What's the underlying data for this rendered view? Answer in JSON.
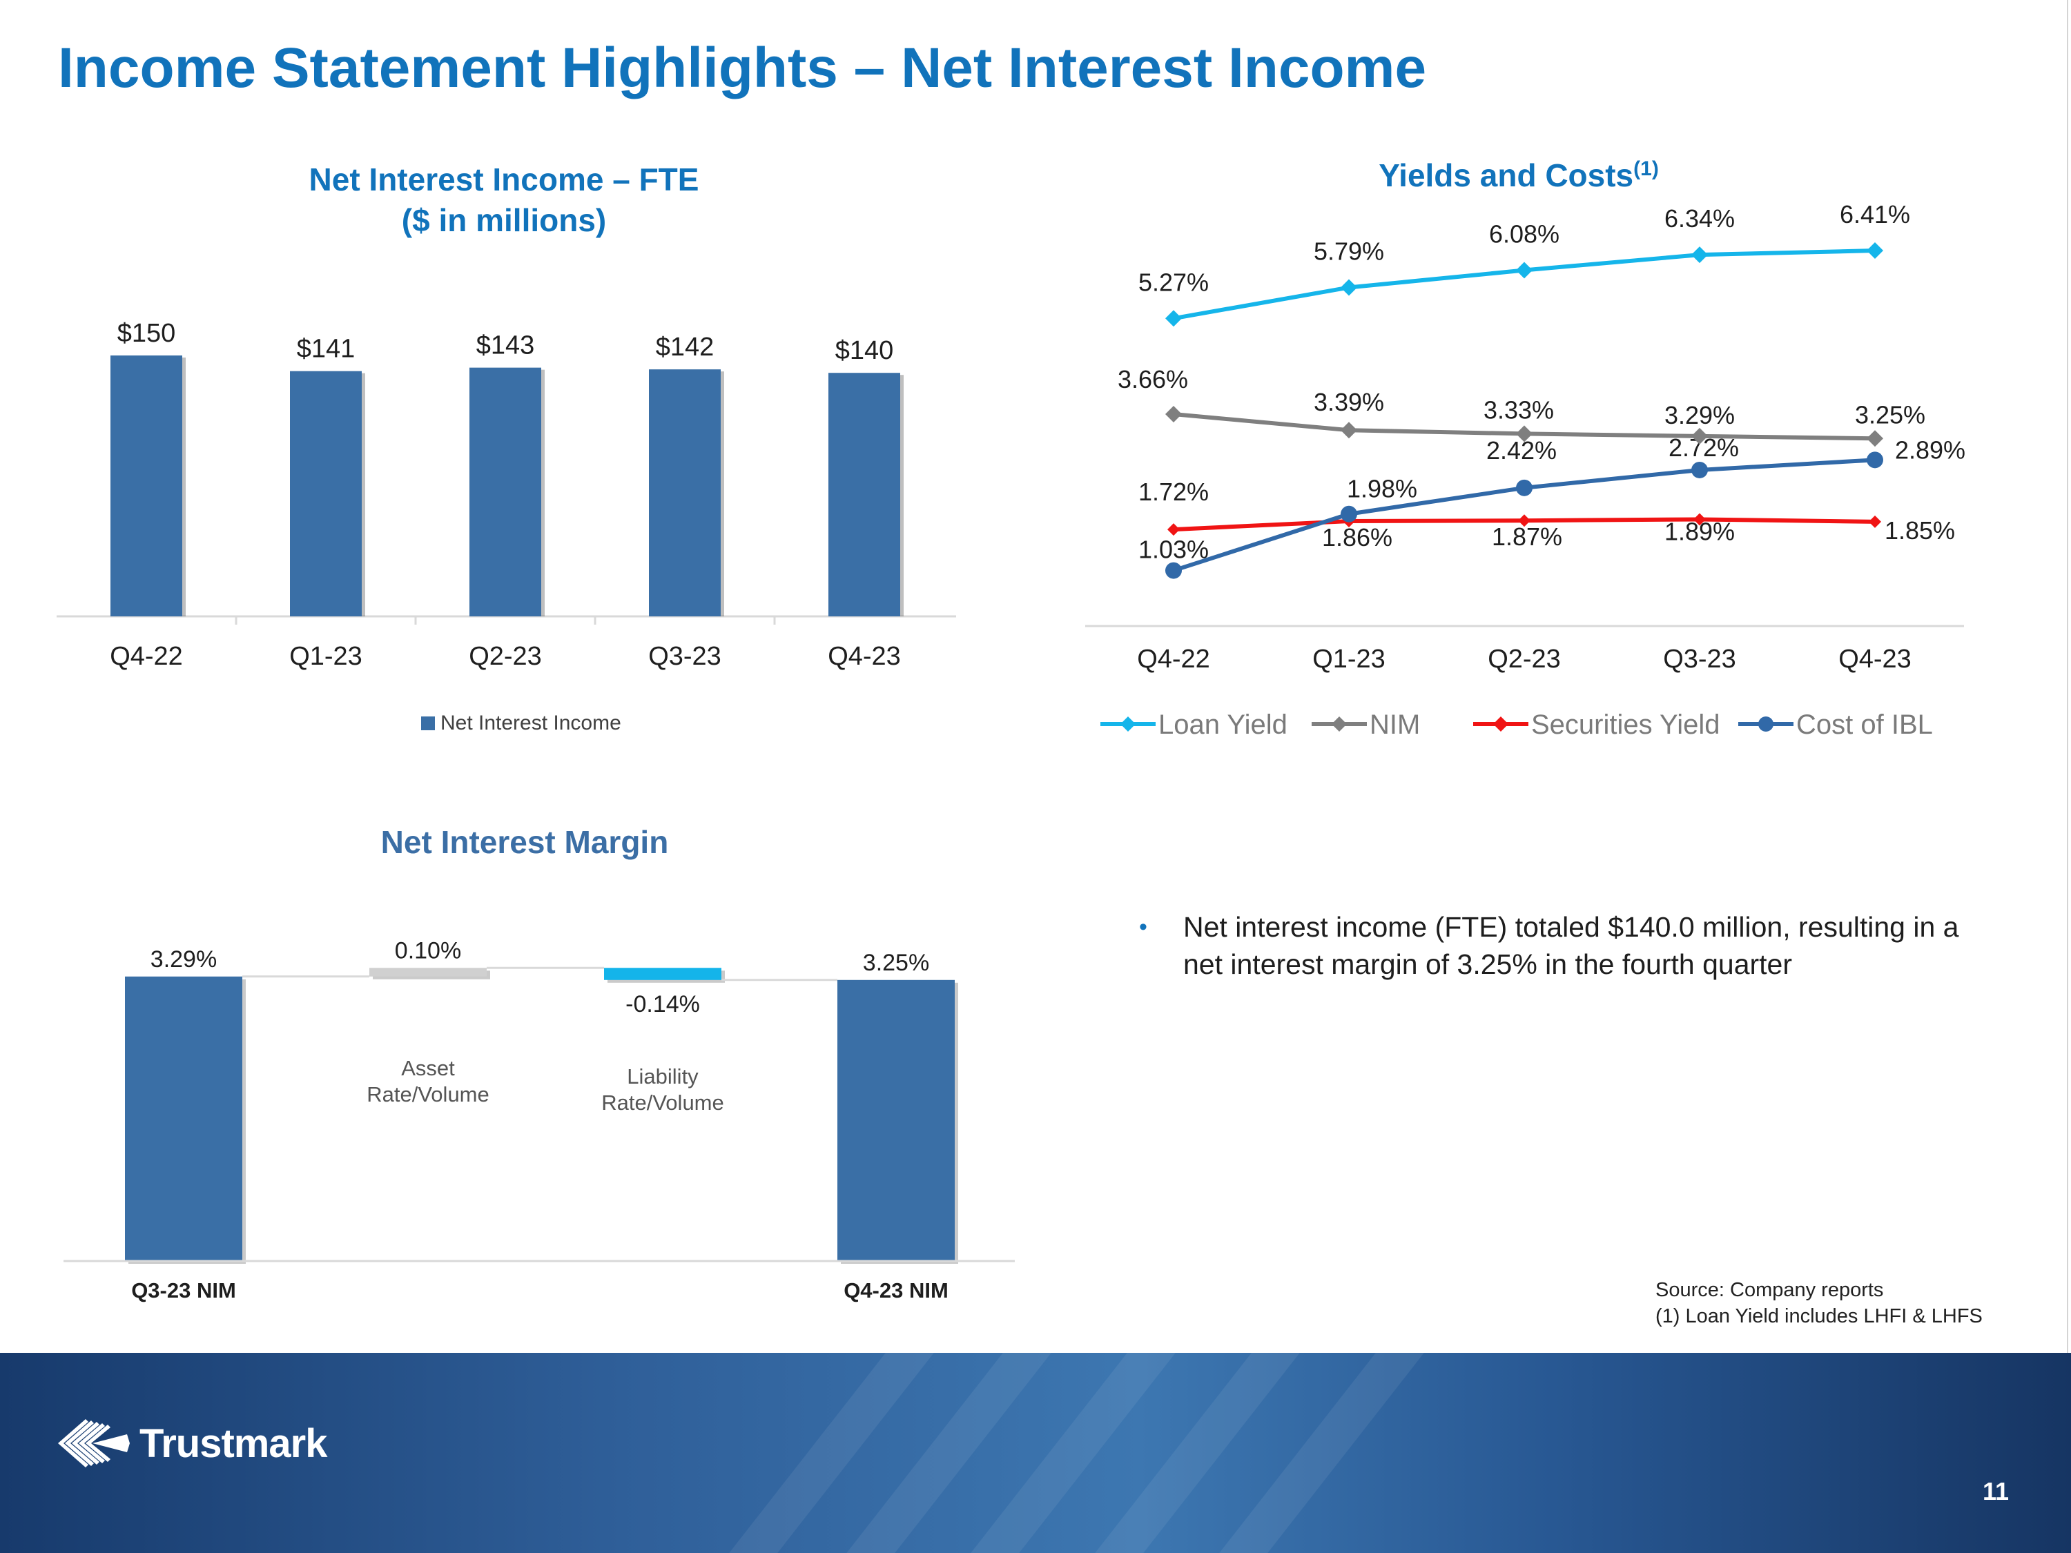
{
  "slide": {
    "title": "Income Statement Highlights – Net Interest Income",
    "page_number": "11"
  },
  "colors": {
    "title_blue": "#1173bb",
    "bar_blue": "#3a6fa6",
    "loan_yield": "#15b5ea",
    "nim": "#7f7f7f",
    "securities_yield": "#f01414",
    "cost_ibl": "#3169a8",
    "increase_gray": "#d0d0d0",
    "decrease_cyan": "#14b4ea"
  },
  "chart_data": [
    {
      "type": "bar",
      "title": "Net Interest Income – FTE",
      "subtitle": "($ in millions)",
      "categories": [
        "Q4-22",
        "Q1-23",
        "Q2-23",
        "Q3-23",
        "Q4-23"
      ],
      "values": [
        150,
        141,
        143,
        142,
        140
      ],
      "data_labels": [
        "$150",
        "$141",
        "$143",
        "$142",
        "$140"
      ],
      "legend": [
        "Net Interest Income"
      ],
      "legend_position": "bottom",
      "ylim": [
        0,
        150
      ]
    },
    {
      "type": "line",
      "title": "Yields and Costs",
      "title_superscript": "(1)",
      "categories": [
        "Q4-22",
        "Q1-23",
        "Q2-23",
        "Q3-23",
        "Q4-23"
      ],
      "series": [
        {
          "name": "Loan Yield",
          "values": [
            5.27,
            5.79,
            6.08,
            6.34,
            6.41
          ],
          "labels": [
            "5.27%",
            "5.79%",
            "6.08%",
            "6.34%",
            "6.41%"
          ],
          "color": "#15b5ea",
          "marker": "diamond"
        },
        {
          "name": "NIM",
          "values": [
            3.66,
            3.39,
            3.33,
            3.29,
            3.25
          ],
          "labels": [
            "3.66%",
            "3.39%",
            "3.33%",
            "3.29%",
            "3.25%"
          ],
          "color": "#7f7f7f",
          "marker": "diamond"
        },
        {
          "name": "Securities Yield",
          "values": [
            1.72,
            1.86,
            1.87,
            1.89,
            1.85
          ],
          "labels": [
            "1.72%",
            "1.86%",
            "1.87%",
            "1.89%",
            "1.85%"
          ],
          "color": "#f01414",
          "marker": "diamond"
        },
        {
          "name": "Cost of IBL",
          "values": [
            1.03,
            1.98,
            2.42,
            2.72,
            2.89
          ],
          "labels": [
            "1.03%",
            "1.98%",
            "2.42%",
            "2.72%",
            "2.89%"
          ],
          "color": "#3169a8",
          "marker": "circle"
        }
      ],
      "legend_position": "bottom",
      "ylim": [
        0.7,
        7.2
      ]
    },
    {
      "type": "bar",
      "subtype": "waterfall",
      "title": "Net Interest Margin",
      "categories": [
        "Q3-23 NIM",
        "Asset Rate/Volume",
        "Liability Rate/Volume",
        "Q4-23 NIM"
      ],
      "values": [
        3.29,
        0.1,
        -0.14,
        3.25
      ],
      "data_labels": [
        "3.29%",
        "0.10%",
        "-0.14%",
        "3.25%"
      ],
      "measures": [
        "absolute",
        "relative",
        "relative",
        "total"
      ],
      "ylim": [
        0,
        3.4
      ]
    }
  ],
  "commentary": {
    "bullet": "Net interest income (FTE) totaled $140.0 million, resulting in a net interest margin of 3.25% in the fourth quarter"
  },
  "source_notes": {
    "line1": "Source: Company reports",
    "line2": "(1) Loan Yield  includes LHFI & LHFS"
  },
  "logo": {
    "text": "Trustmark",
    "icon": "trustmark-globe-icon"
  }
}
